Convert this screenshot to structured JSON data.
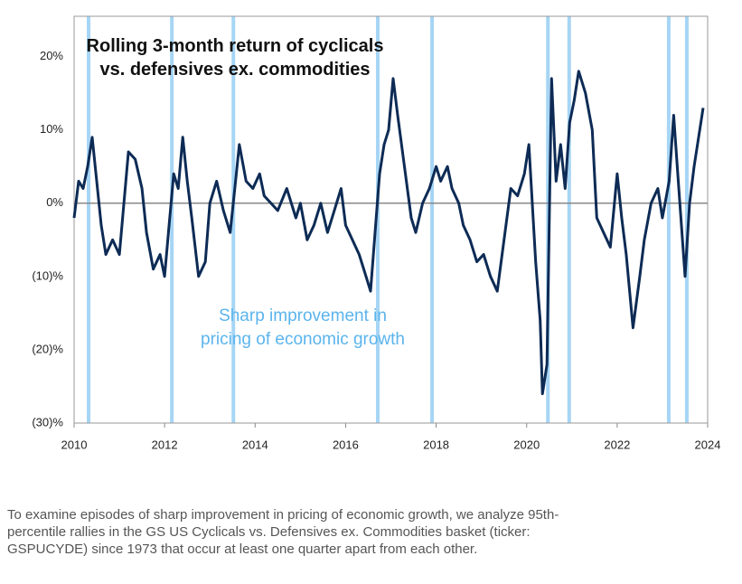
{
  "chart_data": {
    "type": "line",
    "title": "Rolling 3-month return of cyclicals vs. defensives ex. commodities",
    "annotation": "Sharp improvement in pricing of economic growth",
    "annotation_color": "#5bb4ec",
    "caption": "To examine episodes of sharp improvement in pricing of economic growth, we analyze 95th-percentile rallies in the GS US Cyclicals vs. Defensives ex. Commodities basket (ticker: GSPUCYDE) since 1973 that occur at least one quarter apart from each other.",
    "xlim": [
      2010,
      2024
    ],
    "xticks": [
      2010,
      2012,
      2014,
      2016,
      2018,
      2020,
      2022,
      2024
    ],
    "ylim": [
      -30,
      25.5
    ],
    "yticks": [
      {
        "value": 20,
        "label": "20%"
      },
      {
        "value": 10,
        "label": "10%"
      },
      {
        "value": 0,
        "label": "0%"
      },
      {
        "value": -10,
        "label": "(10)%"
      },
      {
        "value": -20,
        "label": "(20)%"
      },
      {
        "value": -30,
        "label": "(30)%"
      }
    ],
    "zero_line": true,
    "grid": false,
    "event_lines": {
      "color": "#a6d5f5",
      "x": [
        2010.32,
        2012.16,
        2013.52,
        2016.71,
        2017.91,
        2020.47,
        2020.94,
        2023.14,
        2023.54
      ]
    },
    "x": [
      2010.0,
      2010.1,
      2010.2,
      2010.3,
      2010.4,
      2010.5,
      2010.6,
      2010.7,
      2010.85,
      2011.0,
      2011.1,
      2011.2,
      2011.35,
      2011.5,
      2011.6,
      2011.75,
      2011.9,
      2012.0,
      2012.1,
      2012.2,
      2012.3,
      2012.4,
      2012.5,
      2012.6,
      2012.75,
      2012.9,
      2013.0,
      2013.15,
      2013.3,
      2013.45,
      2013.55,
      2013.65,
      2013.8,
      2013.95,
      2014.1,
      2014.2,
      2014.35,
      2014.5,
      2014.7,
      2014.9,
      2015.0,
      2015.15,
      2015.3,
      2015.45,
      2015.6,
      2015.75,
      2015.9,
      2016.0,
      2016.15,
      2016.3,
      2016.45,
      2016.55,
      2016.65,
      2016.75,
      2016.85,
      2016.95,
      2017.05,
      2017.15,
      2017.3,
      2017.45,
      2017.55,
      2017.7,
      2017.85,
      2018.0,
      2018.1,
      2018.25,
      2018.35,
      2018.5,
      2018.6,
      2018.75,
      2018.9,
      2019.05,
      2019.2,
      2019.35,
      2019.5,
      2019.65,
      2019.8,
      2019.95,
      2020.05,
      2020.2,
      2020.3,
      2020.35,
      2020.45,
      2020.55,
      2020.65,
      2020.75,
      2020.85,
      2020.95,
      2021.05,
      2021.15,
      2021.3,
      2021.45,
      2021.55,
      2021.7,
      2021.85,
      2022.0,
      2022.1,
      2022.2,
      2022.35,
      2022.5,
      2022.6,
      2022.75,
      2022.9,
      2023.0,
      2023.15,
      2023.25,
      2023.35,
      2023.5,
      2023.6,
      2023.7,
      2023.8,
      2023.9
    ],
    "series": [
      {
        "color": "#0d2b55",
        "values": [
          -2,
          3,
          2,
          5,
          9,
          3,
          -3,
          -7,
          -5,
          -7,
          0,
          7,
          6,
          2,
          -4,
          -9,
          -7,
          -10,
          -3,
          4,
          2,
          9,
          3,
          -2,
          -10,
          -8,
          0,
          3,
          -1,
          -4,
          2,
          8,
          3,
          2,
          4,
          1,
          0,
          -1,
          2,
          -2,
          0,
          -5,
          -3,
          0,
          -4,
          -1,
          2,
          -3,
          -5,
          -7,
          -10,
          -12,
          -4,
          4,
          8,
          10,
          17,
          12,
          5,
          -2,
          -4,
          0,
          2,
          5,
          3,
          5,
          2,
          0,
          -3,
          -5,
          -8,
          -7,
          -10,
          -12,
          -5,
          2,
          1,
          4,
          8,
          -8,
          -16,
          -26,
          -22,
          17,
          3,
          8,
          2,
          11,
          14,
          18,
          15,
          10,
          -2,
          -4,
          -6,
          4,
          -2,
          -7,
          -17,
          -10,
          -5,
          0,
          2,
          -2,
          3,
          12,
          3,
          -10,
          0,
          5,
          9,
          13
        ]
      }
    ]
  }
}
